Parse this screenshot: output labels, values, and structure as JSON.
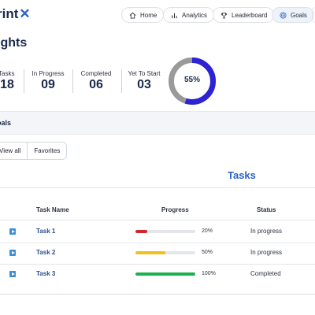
{
  "header": {
    "logo_text": "rint",
    "logo_mark": "✕",
    "nav": [
      {
        "label": "Home",
        "icon": "home-icon"
      },
      {
        "label": "Analytics",
        "icon": "bar-chart-icon"
      },
      {
        "label": "Leaderboard",
        "icon": "trophy-icon"
      },
      {
        "label": "Goals",
        "icon": "target-icon",
        "active": true
      }
    ]
  },
  "insights": {
    "title": "ights",
    "stats": [
      {
        "label": "Tasks",
        "value": "18"
      },
      {
        "label": "In Progress",
        "value": "09"
      },
      {
        "label": "Completed",
        "value": "06"
      },
      {
        "label": "Yet To Start",
        "value": "03"
      }
    ],
    "donut": {
      "label": "55%",
      "fraction": 0.55,
      "fill_color": "#2c22d6",
      "track_color": "#9a9a9a"
    }
  },
  "goals": {
    "title": "oals",
    "filters": [
      "View all",
      "Favorites"
    ]
  },
  "tasks": {
    "heading": "Tasks",
    "columns": {
      "name": "Task Name",
      "progress": "Progress",
      "status": "Status"
    },
    "rows": [
      {
        "name": "Task 1",
        "progress": 0.2,
        "progress_label": "20%",
        "status": "In progress",
        "color": "#d8232a"
      },
      {
        "name": "Task 2",
        "progress": 0.5,
        "progress_label": "50%",
        "status": "In progress",
        "color": "#efc21a"
      },
      {
        "name": "Task 3",
        "progress": 1.0,
        "progress_label": "100%",
        "status": "Completed",
        "color": "#1db04c"
      }
    ]
  },
  "colors": {
    "accent": "#2a62c9",
    "navy": "#1b2a4a"
  }
}
